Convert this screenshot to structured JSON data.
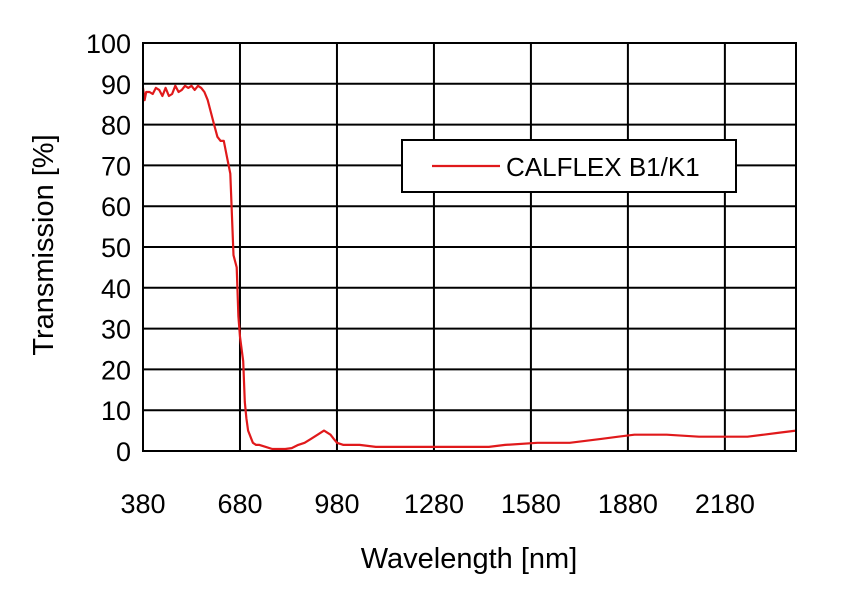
{
  "chart_data": {
    "type": "line",
    "title": "",
    "xlabel": "Wavelength [nm]",
    "ylabel": "Transmission [%]",
    "xlim": [
      380,
      2400
    ],
    "ylim": [
      0,
      100
    ],
    "x_ticks": [
      380,
      680,
      980,
      1280,
      1580,
      1880,
      2180
    ],
    "y_ticks": [
      0,
      10,
      20,
      30,
      40,
      50,
      60,
      70,
      80,
      90,
      100
    ],
    "grid": true,
    "legend_position": "upper-right",
    "series": [
      {
        "name": "CALFLEX B1/K1",
        "color": "#e0191b",
        "x": [
          380,
          385,
          390,
          400,
          410,
          420,
          430,
          440,
          450,
          460,
          470,
          480,
          490,
          500,
          510,
          520,
          530,
          540,
          550,
          560,
          570,
          580,
          590,
          600,
          610,
          620,
          630,
          640,
          650,
          660,
          670,
          675,
          680,
          685,
          690,
          695,
          700,
          705,
          710,
          715,
          720,
          730,
          740,
          760,
          780,
          800,
          820,
          840,
          860,
          880,
          900,
          920,
          940,
          960,
          970,
          980,
          1000,
          1050,
          1100,
          1150,
          1200,
          1300,
          1400,
          1450,
          1500,
          1600,
          1700,
          1750,
          1800,
          1850,
          1900,
          2000,
          2100,
          2200,
          2250,
          2300,
          2350,
          2400
        ],
        "values": [
          89,
          86,
          88,
          88,
          87.5,
          89,
          88.5,
          87,
          89,
          87,
          87.5,
          89.5,
          88,
          88.5,
          89.5,
          89,
          89.5,
          88.5,
          89.5,
          89,
          88,
          86,
          83,
          80,
          77,
          76,
          76,
          72,
          68,
          48,
          45,
          33,
          28,
          25,
          22,
          12,
          8,
          5,
          4,
          3,
          2,
          1.5,
          1.5,
          1,
          0.5,
          0.5,
          0.5,
          0.7,
          1.5,
          2,
          3,
          4,
          5,
          4,
          3,
          2,
          1.5,
          1.5,
          1,
          1,
          1,
          1,
          1,
          1,
          1.5,
          2,
          2,
          2.5,
          3,
          3.5,
          4,
          4,
          3.5,
          3.5,
          3.5,
          4,
          4.5,
          5
        ]
      }
    ]
  }
}
